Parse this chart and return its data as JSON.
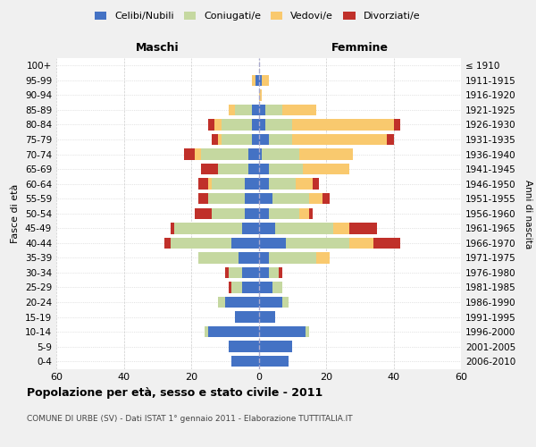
{
  "age_groups": [
    "100+",
    "95-99",
    "90-94",
    "85-89",
    "80-84",
    "75-79",
    "70-74",
    "65-69",
    "60-64",
    "55-59",
    "50-54",
    "45-49",
    "40-44",
    "35-39",
    "30-34",
    "25-29",
    "20-24",
    "15-19",
    "10-14",
    "5-9",
    "0-4"
  ],
  "birth_years": [
    "≤ 1910",
    "1911-1915",
    "1916-1920",
    "1921-1925",
    "1926-1930",
    "1931-1935",
    "1936-1940",
    "1941-1945",
    "1946-1950",
    "1951-1955",
    "1956-1960",
    "1961-1965",
    "1966-1970",
    "1971-1975",
    "1976-1980",
    "1981-1985",
    "1986-1990",
    "1991-1995",
    "1996-2000",
    "2001-2005",
    "2006-2010"
  ],
  "maschi": {
    "celibi": [
      0,
      1,
      0,
      2,
      2,
      2,
      3,
      3,
      4,
      4,
      4,
      5,
      8,
      6,
      5,
      5,
      10,
      7,
      15,
      9,
      8
    ],
    "coniugati": [
      0,
      0,
      0,
      5,
      9,
      9,
      14,
      9,
      10,
      11,
      10,
      20,
      18,
      12,
      4,
      3,
      2,
      0,
      1,
      0,
      0
    ],
    "vedovi": [
      0,
      1,
      0,
      2,
      2,
      1,
      2,
      0,
      1,
      0,
      0,
      0,
      0,
      0,
      0,
      0,
      0,
      0,
      0,
      0,
      0
    ],
    "divorziati": [
      0,
      0,
      0,
      0,
      2,
      2,
      3,
      5,
      3,
      3,
      5,
      1,
      2,
      0,
      1,
      1,
      0,
      0,
      0,
      0,
      0
    ]
  },
  "femmine": {
    "nubili": [
      0,
      1,
      0,
      2,
      2,
      3,
      1,
      3,
      3,
      4,
      3,
      5,
      8,
      3,
      3,
      4,
      7,
      5,
      14,
      10,
      9
    ],
    "coniugate": [
      0,
      0,
      0,
      5,
      8,
      7,
      11,
      10,
      8,
      11,
      9,
      17,
      19,
      14,
      3,
      3,
      2,
      0,
      1,
      0,
      0
    ],
    "vedove": [
      0,
      2,
      1,
      10,
      30,
      28,
      16,
      14,
      5,
      4,
      3,
      5,
      7,
      4,
      0,
      0,
      0,
      0,
      0,
      0,
      0
    ],
    "divorziate": [
      0,
      0,
      0,
      0,
      2,
      2,
      0,
      0,
      2,
      2,
      1,
      8,
      8,
      0,
      1,
      0,
      0,
      0,
      0,
      0,
      0
    ]
  },
  "colors": {
    "celibi": "#4472C4",
    "coniugati": "#C5D8A0",
    "vedovi": "#F9C96E",
    "divorziati": "#C0302A"
  },
  "title": "Popolazione per età, sesso e stato civile - 2011",
  "subtitle": "COMUNE DI URBE (SV) - Dati ISTAT 1° gennaio 2011 - Elaborazione TUTTITALIA.IT",
  "xlabel_left": "Maschi",
  "xlabel_right": "Femmine",
  "ylabel_left": "Fasce di età",
  "ylabel_right": "Anni di nascita",
  "xlim": 60,
  "background_color": "#f0f0f0",
  "plot_background": "#ffffff"
}
